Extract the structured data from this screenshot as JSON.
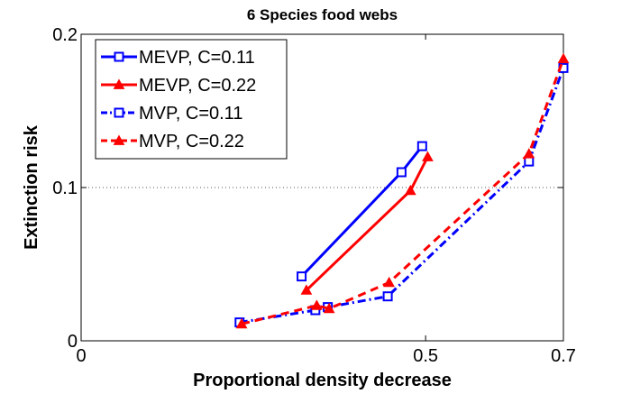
{
  "chart_data": {
    "type": "line",
    "title": "6 Species food webs",
    "xlabel": "Proportional density decrease",
    "ylabel": "Extinction risk",
    "xlim": [
      0,
      0.7
    ],
    "ylim": [
      0,
      0.2
    ],
    "xticks": [
      0,
      0.5,
      0.7
    ],
    "xtick_labels": [
      "0",
      "0.5",
      "0.7"
    ],
    "yticks": [
      0,
      0.1,
      0.2
    ],
    "ytick_labels": [
      "0",
      "0.1",
      "0.2"
    ],
    "grid": "dotted horizontal line at 0.1",
    "legend_position": "top-left",
    "series": [
      {
        "name": "MEVP, C=0.11",
        "color": "#0000ff",
        "line_style": "solid",
        "marker": "square",
        "x": [
          0.32,
          0.465,
          0.495
        ],
        "y": [
          0.042,
          0.11,
          0.127
        ]
      },
      {
        "name": "MEVP, C=0.22",
        "color": "#ff0000",
        "line_style": "solid",
        "marker": "triangle",
        "x": [
          0.327,
          0.478,
          0.503
        ],
        "y": [
          0.033,
          0.098,
          0.12
        ]
      },
      {
        "name": "MVP, C=0.11",
        "color": "#0000ff",
        "line_style": "dashdot",
        "marker": "square",
        "x": [
          0.23,
          0.34,
          0.358,
          0.445,
          0.65,
          0.7
        ],
        "y": [
          0.012,
          0.02,
          0.022,
          0.029,
          0.117,
          0.178
        ]
      },
      {
        "name": "MVP, C=0.22",
        "color": "#ff0000",
        "line_style": "dashed",
        "marker": "triangle",
        "x": [
          0.233,
          0.342,
          0.36,
          0.447,
          0.65,
          0.7
        ],
        "y": [
          0.011,
          0.023,
          0.021,
          0.038,
          0.122,
          0.184
        ]
      }
    ]
  }
}
